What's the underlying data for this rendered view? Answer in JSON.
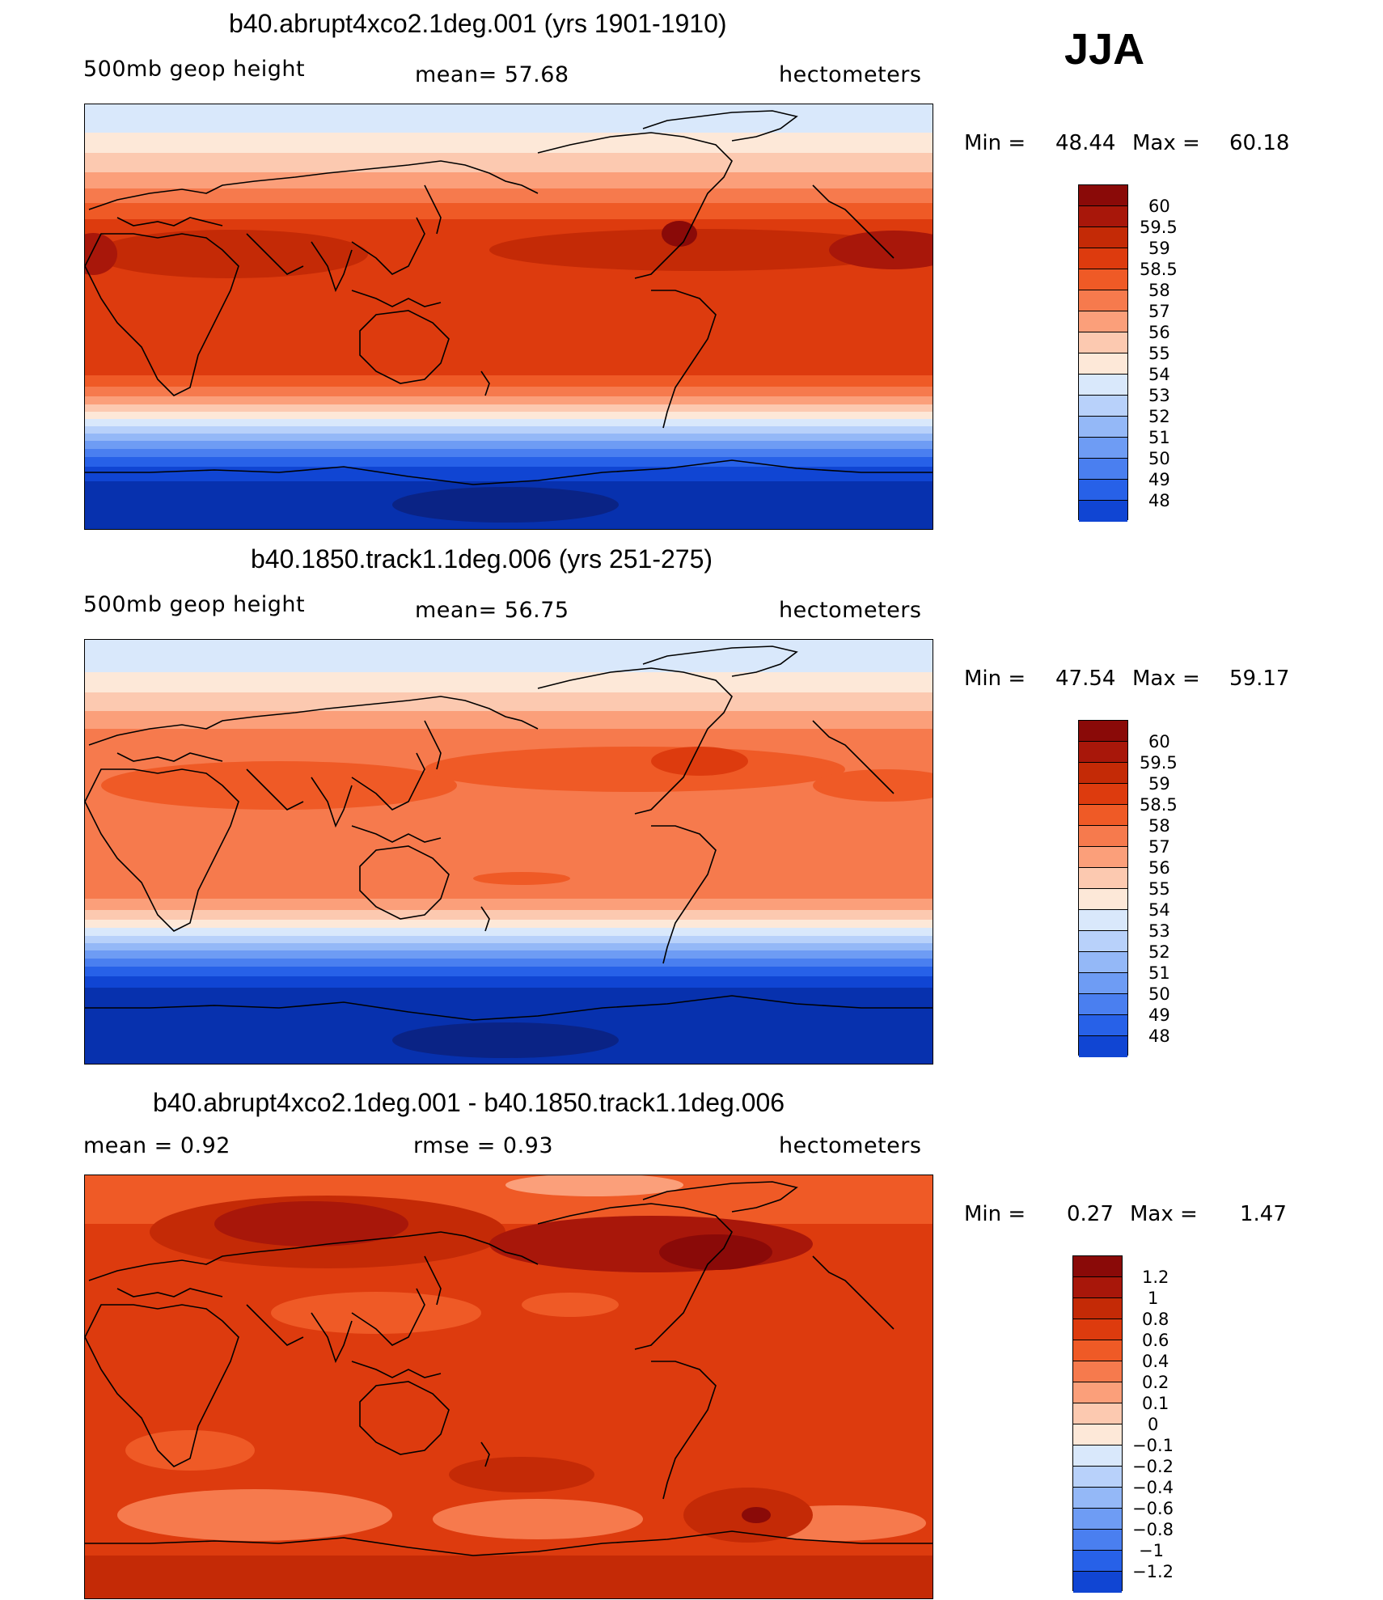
{
  "season": "JJA",
  "colors": {
    "warm": [
      "#fde8d8",
      "#fcc9b0",
      "#fb9f7a",
      "#f67a4d",
      "#ef5a26",
      "#dd3b0e",
      "#c42a06",
      "#a8170a",
      "#8a0a08"
    ],
    "cool": [
      "#d9e8fb",
      "#b8d1fa",
      "#94b8f7",
      "#6e9cf4",
      "#4a7ff0",
      "#2761e8",
      "#1045d3",
      "#0731ae",
      "#0a2385"
    ],
    "continents": "#000000"
  },
  "panels": [
    {
      "id": "top",
      "title": "b40.abrupt4xco2.1deg.001 (yrs 1901-1910)",
      "left_label": "500mb  geop  height",
      "center_label": "mean=   57.68",
      "right_label": "hectometers",
      "min_label": "Min  =",
      "min_value": "48.44",
      "max_label": "Max  =",
      "max_value": "60.18",
      "colorbar_labels": [
        "60",
        "59.5",
        "59",
        "58.5",
        "58",
        "57",
        "56",
        "55",
        "54",
        "53",
        "52",
        "51",
        "50",
        "49",
        "48"
      ]
    },
    {
      "id": "middle",
      "title": "b40.1850.track1.1deg.006 (yrs 251-275)",
      "left_label": "500mb  geop  height",
      "center_label": "mean=   56.75",
      "right_label": "hectometers",
      "min_label": "Min  =",
      "min_value": "47.54",
      "max_label": "Max  =",
      "max_value": "59.17",
      "colorbar_labels": [
        "60",
        "59.5",
        "59",
        "58.5",
        "58",
        "57",
        "56",
        "55",
        "54",
        "53",
        "52",
        "51",
        "50",
        "49",
        "48"
      ]
    },
    {
      "id": "bottom",
      "title": "b40.abrupt4xco2.1deg.001 - b40.1850.track1.1deg.006",
      "left_label": "mean  =      0.92",
      "center_label": "rmse  =     0.93",
      "right_label": "hectometers",
      "min_label": "Min  =",
      "min_value": "0.27",
      "max_label": "Max  =",
      "max_value": "1.47",
      "colorbar_labels": [
        "1.2",
        "1",
        "0.8",
        "0.6",
        "0.4",
        "0.2",
        "0.1",
        "0",
        "−0.1",
        "−0.2",
        "−0.4",
        "−0.6",
        "−0.8",
        "−1",
        "−1.2"
      ]
    }
  ]
}
